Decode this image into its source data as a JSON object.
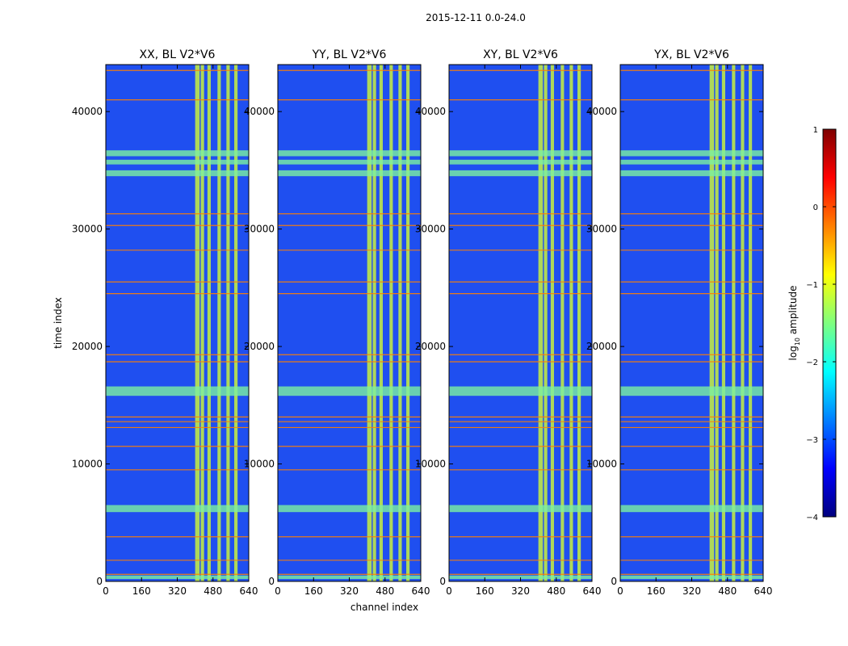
{
  "chart_data": {
    "type": "heatmap",
    "suptitle": "2015-12-11 0.0-24.0",
    "xlabel": "channel index",
    "ylabel": "time index",
    "xlim": [
      0,
      640
    ],
    "ylim": [
      0,
      44000
    ],
    "x_ticks": [
      0,
      160,
      320,
      480,
      640
    ],
    "y_ticks": [
      0,
      10000,
      20000,
      30000,
      40000
    ],
    "x_tick_labels": [
      "0",
      "160",
      "320",
      "480",
      "640"
    ],
    "y_tick_labels": [
      "0",
      "10000",
      "20000",
      "30000",
      "40000"
    ],
    "panels": [
      {
        "title": "XX, BL V2*V6",
        "pol": "XX"
      },
      {
        "title": "YY, BL V2*V6",
        "pol": "YY"
      },
      {
        "title": "XY, BL V2*V6",
        "pol": "XY"
      },
      {
        "title": "YX, BL V2*V6",
        "pol": "YX"
      }
    ],
    "colorbar": {
      "label_prefix": "log",
      "label_sub": "10",
      "label_suffix": " amplitude",
      "range": [
        -4,
        1
      ],
      "ticks": [
        1,
        0,
        -1,
        -2,
        -3,
        -4
      ],
      "tick_labels": [
        "1",
        "0",
        "−1",
        "−2",
        "−3",
        "−4"
      ],
      "colormap": "jet",
      "colors": [
        "#00007f",
        "#0000ff",
        "#007fff",
        "#00ffff",
        "#7fff7f",
        "#ffff00",
        "#ff7f00",
        "#ff0000",
        "#7f0000"
      ]
    },
    "bright_channel_bands": [
      [
        400,
        420
      ],
      [
        425,
        440
      ],
      [
        455,
        470
      ],
      [
        500,
        515
      ],
      [
        540,
        555
      ],
      [
        575,
        590
      ]
    ],
    "bright_time_bands": [
      [
        200,
        500
      ],
      [
        5900,
        6500
      ],
      [
        15800,
        16600
      ],
      [
        34500,
        35000
      ],
      [
        35500,
        35900
      ],
      [
        36200,
        36700
      ]
    ],
    "rfi_time_lines": [
      600,
      1800,
      3800,
      9500,
      11500,
      13100,
      13600,
      14000,
      18700,
      19300,
      24500,
      25500,
      28200,
      30300,
      31300,
      41000,
      43500
    ]
  }
}
